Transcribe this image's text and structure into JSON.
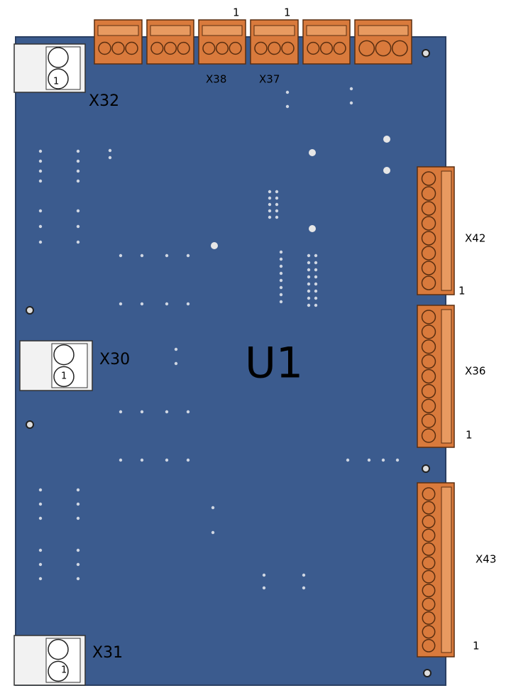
{
  "board": {
    "designator": "U1"
  },
  "connectors": [
    {
      "name": "X38",
      "pin1": "1"
    },
    {
      "name": "X37",
      "pin1": "1"
    },
    {
      "name": "X32",
      "pin1": "1"
    },
    {
      "name": "X42",
      "pin1": "1"
    },
    {
      "name": "X36",
      "pin1": "1"
    },
    {
      "name": "X43",
      "pin1": "1"
    },
    {
      "name": "X30",
      "pin1": "1"
    },
    {
      "name": "X31",
      "pin1": "1"
    }
  ]
}
